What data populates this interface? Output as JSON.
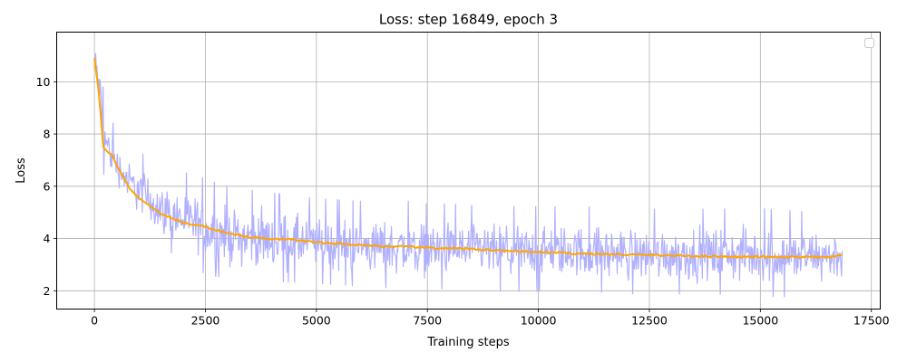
{
  "chart_data": {
    "type": "line",
    "title": "Loss: step 16849, epoch 3",
    "xlabel": "Training steps",
    "ylabel": "Loss",
    "xlim": [
      -850,
      17700
    ],
    "ylim": [
      1.3,
      11.9
    ],
    "xticks": [
      0,
      2500,
      5000,
      7500,
      10000,
      12500,
      15000,
      17500
    ],
    "xtick_labels": [
      "0",
      "2500",
      "5000",
      "7500",
      "10000",
      "12500",
      "15000",
      "17500"
    ],
    "yticks": [
      2,
      4,
      6,
      8,
      10
    ],
    "ytick_labels": [
      "2",
      "4",
      "6",
      "8",
      "10"
    ],
    "grid": true,
    "legend": {
      "placement": "top-right",
      "entries": []
    },
    "series": [
      {
        "role": "raw",
        "color": "#b0b0ff",
        "x": [
          0,
          100,
          200,
          300,
          500,
          750,
          1000,
          1500,
          2000,
          2500,
          3000,
          4000,
          5000,
          6000,
          7000,
          7500,
          8000,
          9000,
          10000,
          11000,
          12000,
          13000,
          14000,
          15000,
          16000,
          16849
        ],
        "lower": [
          10.2,
          8.6,
          6.8,
          6.5,
          6.0,
          5.3,
          4.8,
          4.0,
          3.5,
          3.0,
          2.8,
          2.7,
          2.6,
          2.5,
          2.4,
          2.4,
          2.4,
          2.3,
          2.3,
          2.3,
          2.2,
          2.2,
          2.2,
          2.1,
          2.1,
          2.2
        ],
        "upper": [
          11.5,
          11.2,
          9.2,
          8.5,
          7.7,
          7.1,
          6.9,
          6.2,
          6.0,
          5.7,
          5.4,
          5.2,
          5.0,
          4.9,
          4.9,
          4.8,
          4.8,
          4.7,
          4.7,
          4.7,
          4.6,
          4.6,
          4.6,
          4.6,
          4.5,
          4.5
        ]
      },
      {
        "role": "smoothed",
        "color": "#ffa500",
        "x": [
          0,
          100,
          200,
          300,
          400,
          500,
          600,
          700,
          800,
          1000,
          1250,
          1500,
          1750,
          2000,
          2500,
          3000,
          3500,
          4000,
          4500,
          5000,
          5500,
          6000,
          6500,
          7000,
          7500,
          8000,
          8500,
          9000,
          9500,
          10000,
          10500,
          11000,
          11500,
          12000,
          12500,
          13000,
          13500,
          14000,
          14500,
          15000,
          15500,
          16000,
          16500,
          16849
        ],
        "y": [
          10.9,
          9.6,
          7.5,
          7.3,
          7.2,
          6.8,
          6.5,
          6.2,
          5.9,
          5.55,
          5.25,
          4.95,
          4.8,
          4.6,
          4.45,
          4.2,
          4.05,
          4.0,
          3.95,
          3.85,
          3.8,
          3.75,
          3.7,
          3.68,
          3.65,
          3.62,
          3.6,
          3.55,
          3.5,
          3.48,
          3.45,
          3.42,
          3.4,
          3.38,
          3.37,
          3.35,
          3.33,
          3.32,
          3.3,
          3.3,
          3.28,
          3.3,
          3.28,
          3.35
        ]
      }
    ]
  }
}
